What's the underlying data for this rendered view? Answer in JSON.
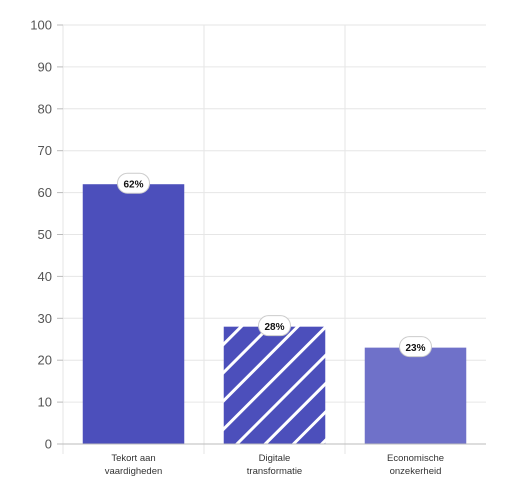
{
  "chart_data": {
    "type": "bar",
    "title": "",
    "xlabel": "",
    "ylabel": "",
    "ylim": [
      0,
      100
    ],
    "yticks": [
      0,
      10,
      20,
      30,
      40,
      50,
      60,
      70,
      80,
      90,
      100
    ],
    "grid": true,
    "categories": [
      [
        "Tekort aan",
        "vaardigheden"
      ],
      [
        "Digitale",
        "transformatie"
      ],
      [
        "Economische",
        "onzekerheid"
      ]
    ],
    "values": [
      62,
      28,
      23
    ],
    "data_labels": [
      "62%",
      "28%",
      "23%"
    ],
    "bar_styles": [
      "solid",
      "diagonal-stripes",
      "solid-light"
    ],
    "colors": {
      "bar_dark": "#4c4fbb",
      "bar_light": "#6f71c9",
      "stripe": "#ffffff",
      "grid": "#e6e6e6",
      "axis": "#bbbbbb"
    }
  }
}
